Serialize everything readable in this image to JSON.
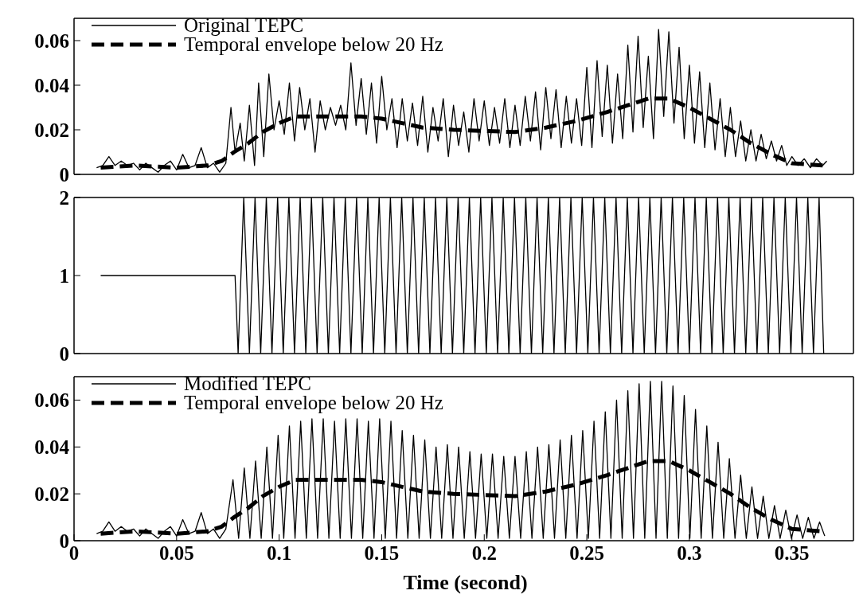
{
  "chart_data": [
    {
      "type": "line",
      "xlim": [
        0,
        0.38
      ],
      "xticks": [
        0,
        0.05,
        0.1,
        0.15,
        0.2,
        0.25,
        0.3,
        0.35
      ],
      "ylim": [
        0,
        0.07
      ],
      "yticks": [
        0,
        0.02,
        0.04,
        0.06
      ],
      "tick_labels": "y",
      "legend": "top left",
      "series": [
        {
          "name": "Original TEPC",
          "color": "#000000",
          "line_style": "solid",
          "x": [
            0.011,
            0.014,
            0.017,
            0.02,
            0.023,
            0.026,
            0.029,
            0.032,
            0.035,
            0.038,
            0.041,
            0.044,
            0.047,
            0.05,
            0.053,
            0.056,
            0.059,
            0.062,
            0.065,
            0.068,
            0.071,
            0.074,
            0.0765,
            0.0785,
            0.081,
            0.083,
            0.0855,
            0.088,
            0.09,
            0.0925,
            0.095,
            0.0975,
            0.1,
            0.1025,
            0.105,
            0.1075,
            0.11,
            0.1125,
            0.115,
            0.1175,
            0.12,
            0.1225,
            0.125,
            0.1275,
            0.13,
            0.1325,
            0.135,
            0.1375,
            0.14,
            0.1425,
            0.145,
            0.1475,
            0.15,
            0.1525,
            0.155,
            0.1575,
            0.16,
            0.1625,
            0.165,
            0.1675,
            0.17,
            0.1725,
            0.175,
            0.1775,
            0.18,
            0.1825,
            0.185,
            0.1875,
            0.19,
            0.1925,
            0.195,
            0.1975,
            0.2,
            0.2025,
            0.205,
            0.2075,
            0.21,
            0.2125,
            0.215,
            0.2175,
            0.22,
            0.2225,
            0.225,
            0.2275,
            0.23,
            0.2325,
            0.235,
            0.2375,
            0.24,
            0.2425,
            0.245,
            0.2475,
            0.25,
            0.2525,
            0.255,
            0.2575,
            0.26,
            0.2625,
            0.265,
            0.2675,
            0.27,
            0.2725,
            0.275,
            0.2775,
            0.28,
            0.2825,
            0.285,
            0.2875,
            0.29,
            0.2925,
            0.295,
            0.2975,
            0.3,
            0.3025,
            0.305,
            0.3075,
            0.31,
            0.3125,
            0.315,
            0.3175,
            0.32,
            0.3225,
            0.325,
            0.3275,
            0.33,
            0.3325,
            0.335,
            0.3375,
            0.34,
            0.3425,
            0.345,
            0.3475,
            0.35,
            0.353,
            0.356,
            0.359,
            0.362,
            0.365,
            0.367
          ],
          "values": [
            0.003,
            0.004,
            0.008,
            0.004,
            0.006,
            0.004,
            0.005,
            0.002,
            0.005,
            0.003,
            0.001,
            0.004,
            0.006,
            0.002,
            0.009,
            0.003,
            0.004,
            0.012,
            0.003,
            0.005,
            0.001,
            0.005,
            0.03,
            0.01,
            0.023,
            0.006,
            0.031,
            0.004,
            0.041,
            0.008,
            0.045,
            0.02,
            0.033,
            0.018,
            0.041,
            0.015,
            0.039,
            0.02,
            0.034,
            0.01,
            0.033,
            0.02,
            0.03,
            0.022,
            0.031,
            0.02,
            0.05,
            0.022,
            0.043,
            0.018,
            0.041,
            0.014,
            0.044,
            0.02,
            0.034,
            0.012,
            0.034,
            0.015,
            0.032,
            0.013,
            0.035,
            0.01,
            0.03,
            0.015,
            0.034,
            0.008,
            0.031,
            0.013,
            0.028,
            0.01,
            0.034,
            0.015,
            0.033,
            0.013,
            0.03,
            0.014,
            0.034,
            0.012,
            0.031,
            0.013,
            0.035,
            0.015,
            0.037,
            0.011,
            0.039,
            0.016,
            0.038,
            0.012,
            0.035,
            0.014,
            0.034,
            0.013,
            0.048,
            0.012,
            0.051,
            0.017,
            0.049,
            0.014,
            0.045,
            0.016,
            0.058,
            0.019,
            0.062,
            0.021,
            0.053,
            0.016,
            0.065,
            0.026,
            0.064,
            0.023,
            0.057,
            0.016,
            0.049,
            0.014,
            0.046,
            0.012,
            0.041,
            0.011,
            0.034,
            0.008,
            0.03,
            0.008,
            0.024,
            0.006,
            0.02,
            0.006,
            0.018,
            0.007,
            0.015,
            0.006,
            0.013,
            0.004,
            0.008,
            0.004,
            0.007,
            0.003,
            0.007,
            0.004,
            0.006
          ]
        },
        {
          "name": "Temporal envelope below 20 Hz",
          "color": "#000000",
          "line_style": "dashed",
          "x": [
            0.013,
            0.03,
            0.05,
            0.065,
            0.072,
            0.078,
            0.085,
            0.092,
            0.1,
            0.108,
            0.12,
            0.14,
            0.15,
            0.16,
            0.17,
            0.185,
            0.2,
            0.215,
            0.23,
            0.245,
            0.26,
            0.27,
            0.28,
            0.29,
            0.3,
            0.31,
            0.32,
            0.33,
            0.34,
            0.35,
            0.365
          ],
          "values": [
            0.003,
            0.004,
            0.003,
            0.004,
            0.006,
            0.01,
            0.014,
            0.019,
            0.023,
            0.026,
            0.026,
            0.026,
            0.025,
            0.023,
            0.021,
            0.02,
            0.0195,
            0.019,
            0.021,
            0.024,
            0.028,
            0.031,
            0.034,
            0.034,
            0.03,
            0.025,
            0.02,
            0.014,
            0.009,
            0.005,
            0.004
          ]
        }
      ]
    },
    {
      "type": "line",
      "xlim": [
        0,
        0.38
      ],
      "xticks": [
        0,
        0.05,
        0.1,
        0.15,
        0.2,
        0.25,
        0.3,
        0.35
      ],
      "ylim": [
        0,
        2
      ],
      "yticks": [
        0,
        1,
        2
      ],
      "tick_labels": "y",
      "series": [
        {
          "color": "#000000",
          "line_style": "solid",
          "x": [
            0.013,
            0.0785,
            0.08,
            0.08275,
            0.0855,
            0.08825,
            0.091,
            0.09375,
            0.0965,
            0.09925,
            0.102,
            0.10475,
            0.1075,
            0.11025,
            0.113,
            0.11575,
            0.1185,
            0.12125,
            0.124,
            0.12675,
            0.1295,
            0.13225,
            0.135,
            0.13775,
            0.1405,
            0.14325,
            0.146,
            0.14875,
            0.1515,
            0.15425,
            0.157,
            0.15975,
            0.1625,
            0.16525,
            0.168,
            0.17075,
            0.1735,
            0.17625,
            0.179,
            0.18175,
            0.1845,
            0.18725,
            0.19,
            0.19275,
            0.1955,
            0.19825,
            0.201,
            0.20375,
            0.2065,
            0.20925,
            0.212,
            0.21475,
            0.2175,
            0.22025,
            0.223,
            0.22575,
            0.2285,
            0.23125,
            0.234,
            0.23675,
            0.2395,
            0.24225,
            0.245,
            0.24775,
            0.2505,
            0.25325,
            0.256,
            0.25875,
            0.2615,
            0.26425,
            0.267,
            0.26975,
            0.2725,
            0.27525,
            0.278,
            0.28075,
            0.2835,
            0.28625,
            0.289,
            0.29175,
            0.2945,
            0.29725,
            0.3,
            0.30275,
            0.3055,
            0.30825,
            0.311,
            0.31375,
            0.3165,
            0.31925,
            0.322,
            0.32475,
            0.3275,
            0.33025,
            0.333,
            0.33575,
            0.3385,
            0.34125,
            0.344,
            0.34675,
            0.3495,
            0.35225,
            0.355,
            0.35775,
            0.3605,
            0.36325,
            0.3655
          ],
          "values": [
            1,
            1,
            0,
            2,
            0,
            2,
            0,
            2,
            0,
            2,
            0,
            2,
            0,
            2,
            0,
            2,
            0,
            2,
            0,
            2,
            0,
            2,
            0,
            2,
            0,
            2,
            0,
            2,
            0,
            2,
            0,
            2,
            0,
            2,
            0,
            2,
            0,
            2,
            0,
            2,
            0,
            2,
            0,
            2,
            0,
            2,
            0,
            2,
            0,
            2,
            0,
            2,
            0,
            2,
            0,
            2,
            0,
            2,
            0,
            2,
            0,
            2,
            0,
            2,
            0,
            2,
            0,
            2,
            0,
            2,
            0,
            2,
            0,
            2,
            0,
            2,
            0,
            2,
            0,
            2,
            0,
            2,
            0,
            2,
            0,
            2,
            0,
            2,
            0,
            2,
            0,
            2,
            0,
            2,
            0,
            2,
            0,
            2,
            0,
            2,
            0,
            2,
            0,
            2,
            0,
            2,
            0
          ]
        }
      ]
    },
    {
      "type": "line",
      "xlabel": "Time (second)",
      "xlim": [
        0,
        0.38
      ],
      "xticks": [
        0,
        0.05,
        0.1,
        0.15,
        0.2,
        0.25,
        0.3,
        0.35
      ],
      "ylim": [
        0,
        0.07
      ],
      "yticks": [
        0,
        0.02,
        0.04,
        0.06
      ],
      "legend": "top left",
      "series": [
        {
          "name": "Modified TEPC",
          "color": "#000000",
          "line_style": "solid",
          "x": [
            0.011,
            0.014,
            0.017,
            0.02,
            0.023,
            0.026,
            0.029,
            0.032,
            0.035,
            0.038,
            0.041,
            0.044,
            0.047,
            0.05,
            0.053,
            0.056,
            0.059,
            0.062,
            0.065,
            0.068,
            0.071,
            0.074,
            0.0775,
            0.08025,
            0.083,
            0.08575,
            0.0885,
            0.09125,
            0.094,
            0.09675,
            0.0995,
            0.10225,
            0.105,
            0.10775,
            0.1105,
            0.11325,
            0.116,
            0.11875,
            0.1215,
            0.12425,
            0.127,
            0.12975,
            0.1325,
            0.13525,
            0.138,
            0.14075,
            0.1435,
            0.14625,
            0.149,
            0.15175,
            0.1545,
            0.15725,
            0.16,
            0.16275,
            0.1655,
            0.16825,
            0.171,
            0.17375,
            0.1765,
            0.17925,
            0.182,
            0.18475,
            0.1875,
            0.19025,
            0.193,
            0.19575,
            0.1985,
            0.20125,
            0.204,
            0.20675,
            0.2095,
            0.21225,
            0.215,
            0.21775,
            0.2205,
            0.22325,
            0.226,
            0.22875,
            0.2315,
            0.23425,
            0.237,
            0.23975,
            0.2425,
            0.24525,
            0.248,
            0.25075,
            0.2535,
            0.25625,
            0.259,
            0.26175,
            0.2645,
            0.26725,
            0.27,
            0.27275,
            0.2755,
            0.27825,
            0.281,
            0.28375,
            0.2865,
            0.28925,
            0.292,
            0.29475,
            0.2975,
            0.30025,
            0.303,
            0.30575,
            0.3085,
            0.31125,
            0.314,
            0.31675,
            0.3195,
            0.32225,
            0.325,
            0.32775,
            0.3305,
            0.33325,
            0.336,
            0.33875,
            0.3415,
            0.34425,
            0.347,
            0.34975,
            0.3525,
            0.35525,
            0.358,
            0.36075,
            0.3635,
            0.366
          ],
          "values": [
            0.003,
            0.004,
            0.008,
            0.004,
            0.006,
            0.004,
            0.005,
            0.002,
            0.005,
            0.003,
            0.001,
            0.004,
            0.006,
            0.002,
            0.009,
            0.003,
            0.004,
            0.012,
            0.003,
            0.005,
            0.001,
            0.005,
            0.026,
            0.001,
            0.031,
            0.001,
            0.034,
            0.001,
            0.04,
            0.001,
            0.045,
            0.001,
            0.049,
            0.001,
            0.051,
            0.001,
            0.052,
            0.001,
            0.052,
            0.001,
            0.051,
            0.001,
            0.052,
            0.001,
            0.052,
            0.001,
            0.051,
            0.001,
            0.052,
            0.001,
            0.051,
            0.001,
            0.047,
            0.001,
            0.045,
            0.001,
            0.043,
            0.001,
            0.04,
            0.001,
            0.041,
            0.001,
            0.04,
            0.001,
            0.038,
            0.001,
            0.037,
            0.001,
            0.037,
            0.001,
            0.036,
            0.001,
            0.036,
            0.001,
            0.038,
            0.001,
            0.04,
            0.001,
            0.041,
            0.001,
            0.043,
            0.001,
            0.045,
            0.001,
            0.047,
            0.001,
            0.051,
            0.001,
            0.055,
            0.001,
            0.06,
            0.001,
            0.064,
            0.001,
            0.067,
            0.001,
            0.068,
            0.001,
            0.068,
            0.001,
            0.066,
            0.001,
            0.062,
            0.001,
            0.056,
            0.001,
            0.049,
            0.001,
            0.042,
            0.001,
            0.035,
            0.001,
            0.028,
            0.001,
            0.023,
            0.001,
            0.019,
            0.001,
            0.015,
            0.001,
            0.013,
            0.001,
            0.011,
            0.001,
            0.01,
            0.001,
            0.008,
            0.002
          ]
        },
        {
          "name": "Temporal envelope below 20 Hz",
          "color": "#000000",
          "line_style": "dashed",
          "x": [
            0.013,
            0.03,
            0.05,
            0.065,
            0.072,
            0.078,
            0.085,
            0.092,
            0.1,
            0.108,
            0.12,
            0.14,
            0.15,
            0.16,
            0.17,
            0.185,
            0.2,
            0.215,
            0.23,
            0.245,
            0.26,
            0.27,
            0.28,
            0.29,
            0.3,
            0.31,
            0.32,
            0.33,
            0.34,
            0.35,
            0.365
          ],
          "values": [
            0.003,
            0.004,
            0.003,
            0.004,
            0.006,
            0.01,
            0.014,
            0.019,
            0.023,
            0.026,
            0.026,
            0.026,
            0.025,
            0.023,
            0.021,
            0.02,
            0.0195,
            0.019,
            0.021,
            0.024,
            0.028,
            0.031,
            0.034,
            0.034,
            0.03,
            0.025,
            0.02,
            0.014,
            0.009,
            0.005,
            0.004
          ]
        }
      ]
    }
  ]
}
